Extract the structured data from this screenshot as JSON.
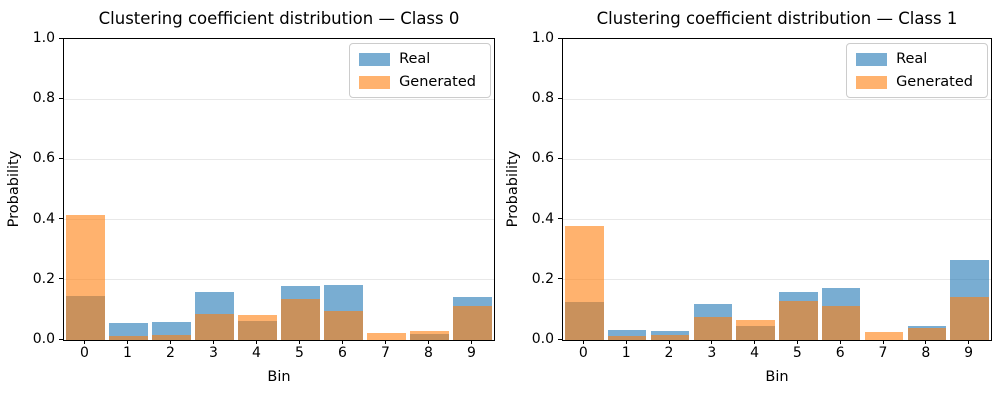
{
  "figure": {
    "background": "#ffffff"
  },
  "colors": {
    "real_base": "#1f77b4",
    "generated_base": "#ff7f0e",
    "bar_alpha": 0.6,
    "grid": "#e8e8e8",
    "spine": "#000000",
    "legend_border": "#cccccc",
    "text": "#000000"
  },
  "chart_data": [
    {
      "type": "bar",
      "title": "Clustering coefficient distribution — Class 0",
      "xlabel": "Bin",
      "ylabel": "Probability",
      "ylim": [
        0,
        1
      ],
      "grid": true,
      "legend_position": "upper right",
      "bar_mode": "overlapping-alpha",
      "categories": [
        "0",
        "1",
        "2",
        "3",
        "4",
        "5",
        "6",
        "7",
        "8",
        "9"
      ],
      "y_tick_labels": [
        "0.0",
        "0.2",
        "0.4",
        "0.6",
        "0.8",
        "1.0"
      ],
      "series": [
        {
          "name": "Real",
          "values": [
            0.145,
            0.056,
            0.059,
            0.159,
            0.062,
            0.181,
            0.184,
            0.0,
            0.02,
            0.143
          ]
        },
        {
          "name": "Generated",
          "values": [
            0.416,
            0.012,
            0.018,
            0.086,
            0.082,
            0.136,
            0.097,
            0.022,
            0.03,
            0.113
          ]
        }
      ]
    },
    {
      "type": "bar",
      "title": "Clustering coefficient distribution — Class 1",
      "xlabel": "Bin",
      "ylabel": "Probability",
      "ylim": [
        0,
        1
      ],
      "grid": true,
      "legend_position": "upper right",
      "bar_mode": "overlapping-alpha",
      "categories": [
        "0",
        "1",
        "2",
        "3",
        "4",
        "5",
        "6",
        "7",
        "8",
        "9"
      ],
      "y_tick_labels": [
        "0.0",
        "0.2",
        "0.4",
        "0.6",
        "0.8",
        "1.0"
      ],
      "series": [
        {
          "name": "Real",
          "values": [
            0.127,
            0.034,
            0.03,
            0.119,
            0.047,
            0.159,
            0.172,
            0.0,
            0.047,
            0.265
          ]
        },
        {
          "name": "Generated",
          "values": [
            0.378,
            0.012,
            0.017,
            0.077,
            0.067,
            0.13,
            0.112,
            0.025,
            0.04,
            0.144
          ]
        }
      ]
    }
  ]
}
